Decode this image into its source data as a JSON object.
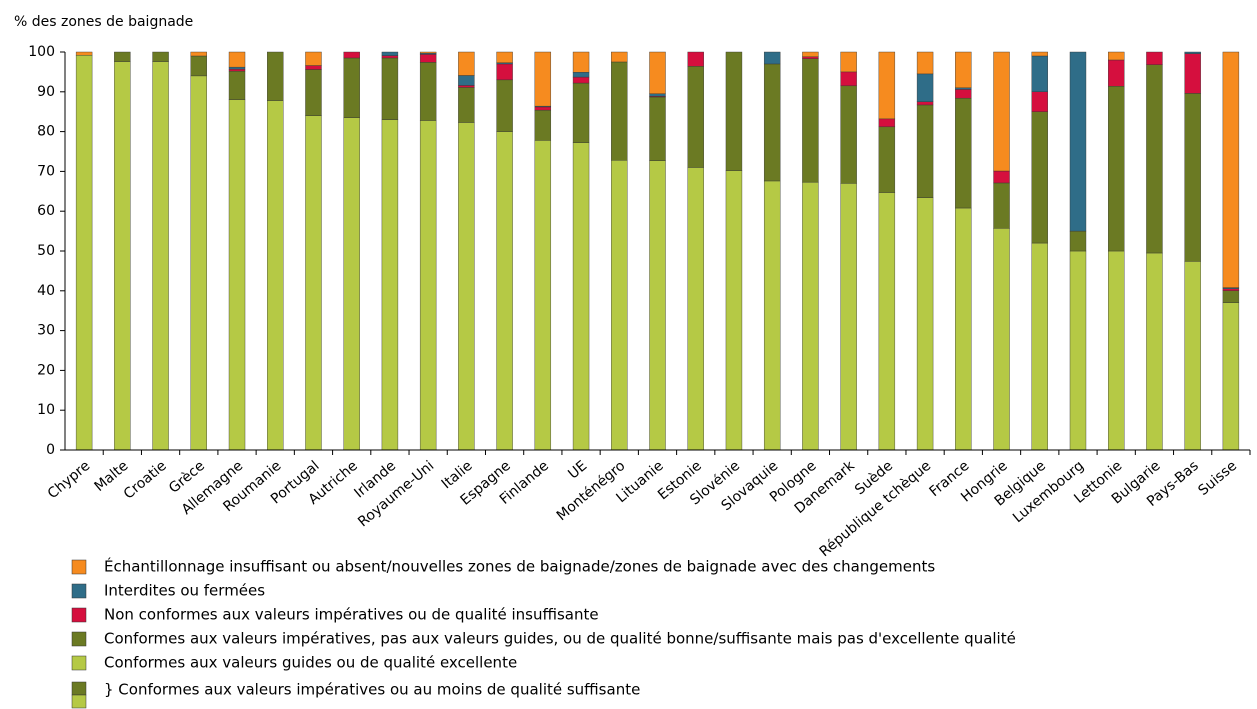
{
  "chart_data": {
    "type": "stacked-bar",
    "y_label": "% des zones de baignade",
    "categories": [
      "Chypre",
      "Malte",
      "Croatie",
      "Grèce",
      "Allemagne",
      "Roumanie",
      "Portugal",
      "Autriche",
      "Irlande",
      "Royaume-Uni",
      "Italie",
      "Espagne",
      "Finlande",
      "UE",
      "Monténégro",
      "Lituanie",
      "Estonie",
      "Slovénie",
      "Slovaquie",
      "Pologne",
      "Danemark",
      "Suède",
      "République tchèque",
      "France",
      "Hongrie",
      "Belgique",
      "Luxembourg",
      "Lettonie",
      "Bulgarie",
      "Pays-Bas",
      "Suisse"
    ],
    "series": [
      {
        "name": "Conformes aux valeurs guides ou de qualité excellente",
        "color": "#b5c945",
        "values": [
          99.2,
          97.6,
          97.6,
          94,
          88,
          87.8,
          84,
          83.5,
          83,
          82.8,
          82.3,
          80,
          77.8,
          77.2,
          72.8,
          72.7,
          71,
          70.2,
          67.6,
          67.3,
          67,
          64.7,
          63.4,
          60.8,
          55.7,
          52,
          50,
          50,
          49.5,
          47.4,
          37
        ]
      },
      {
        "name": "Conformes aux valeurs impératives, pas aux valeurs guides, ou de qualité bonne/suffisante mais pas d'excellente qualité",
        "color": "#6b7a23",
        "values": [
          0,
          2.4,
          2.4,
          5,
          7.2,
          12.2,
          11.6,
          15,
          15.5,
          14.6,
          8.8,
          13,
          7.6,
          15,
          24.7,
          16,
          25.4,
          29.8,
          29.4,
          31,
          24.5,
          16.5,
          23.3,
          27.6,
          11.4,
          33,
          5,
          41.4,
          47.3,
          42.2,
          3
        ]
      },
      {
        "name": "Non conformes aux valeurs impératives ou de qualité insuffisante",
        "color": "#d50f3e",
        "values": [
          0,
          0,
          0,
          0,
          0.5,
          0,
          1,
          1.5,
          0.6,
          2,
          0.5,
          4,
          0.8,
          1.5,
          0,
          0.2,
          3.6,
          0,
          0,
          0.5,
          3.5,
          2,
          0.8,
          2.2,
          3,
          5,
          0,
          6.6,
          3.2,
          10,
          0.5
        ]
      },
      {
        "name": "Interdites ou fermées",
        "color": "#2f6d88",
        "values": [
          0,
          0,
          0,
          0,
          0.5,
          0,
          0,
          0,
          0.9,
          0.3,
          2.5,
          0.3,
          0.2,
          1.2,
          0,
          0.6,
          0,
          0,
          3,
          0,
          0,
          0,
          7,
          0.4,
          0,
          9,
          45,
          0,
          0,
          0.4,
          0.3
        ]
      },
      {
        "name": "Échantillonnage insuffisant ou absent/nouvelles zones de baignade/zones de baignade avec des changements",
        "color": "#f68b1f",
        "values": [
          0.8,
          0,
          0,
          1,
          3.8,
          0,
          3.4,
          0,
          0,
          0.3,
          5.9,
          2.7,
          13.6,
          5.1,
          2.5,
          10.5,
          0,
          0,
          0,
          1.2,
          5,
          16.8,
          5.5,
          9,
          29.9,
          1,
          0,
          2,
          0,
          0,
          59.2
        ]
      }
    ],
    "note": "} Conformes aux valeurs impératives ou au moins de qualité suffisante",
    "ylim": [
      0,
      100
    ],
    "yticks": [
      0,
      10,
      20,
      30,
      40,
      50,
      60,
      70,
      80,
      90,
      100
    ],
    "grid": false
  }
}
